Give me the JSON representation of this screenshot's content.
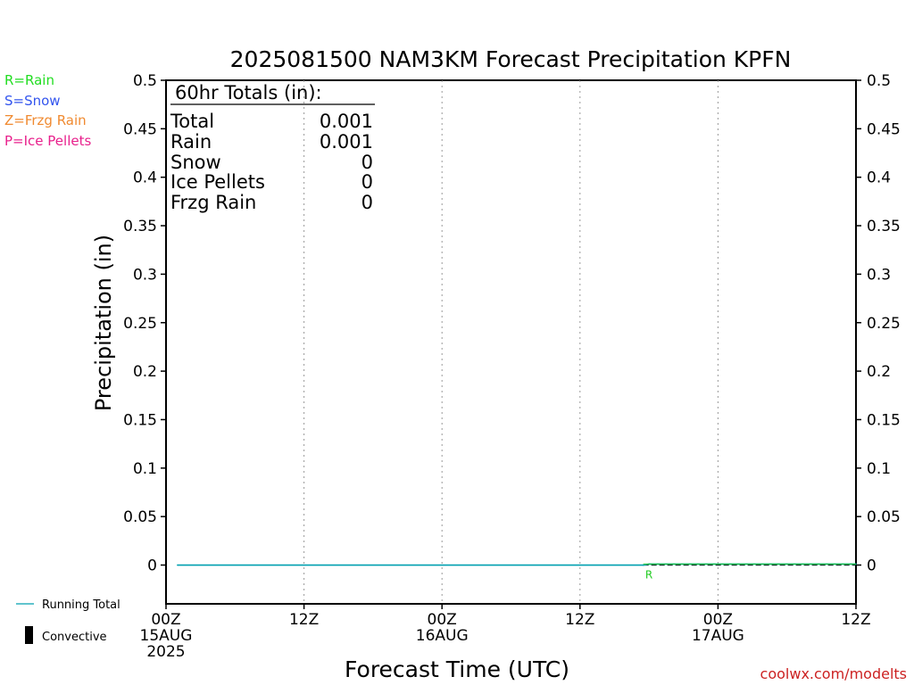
{
  "chart_data": {
    "type": "line",
    "title": "2025081500 NAM3KM Forecast Precipitation KPFN",
    "xlabel": "Forecast Time (UTC)",
    "ylabel": "Precipitation (in)",
    "ylim": [
      -0.04,
      0.5
    ],
    "xlim_hours": [
      0,
      60
    ],
    "yticks": [
      "0.5",
      "0.45",
      "0.4",
      "0.35",
      "0.3",
      "0.25",
      "0.2",
      "0.15",
      "0.1",
      "0.05",
      "0"
    ],
    "xticks": [
      {
        "hour": 0,
        "line1": "00Z",
        "line2": "15AUG",
        "line3": "2025"
      },
      {
        "hour": 12,
        "line1": "12Z",
        "line2": "",
        "line3": ""
      },
      {
        "hour": 24,
        "line1": "00Z",
        "line2": "16AUG",
        "line3": ""
      },
      {
        "hour": 36,
        "line1": "12Z",
        "line2": "",
        "line3": ""
      },
      {
        "hour": 48,
        "line1": "00Z",
        "line2": "17AUG",
        "line3": ""
      },
      {
        "hour": 60,
        "line1": "12Z",
        "line2": "",
        "line3": ""
      }
    ],
    "grid": {
      "vertical": true,
      "horizontal": false
    },
    "series": [
      {
        "name": "Running Total",
        "color": "#00a0b0",
        "x_hours": [
          1,
          41.5,
          42,
          60
        ],
        "values": [
          0,
          0,
          0.001,
          0.001
        ]
      }
    ],
    "precip_markers": [
      {
        "hour": 42,
        "label": "R",
        "color": "#22cc22"
      }
    ],
    "convective_values": []
  },
  "legend": {
    "types": [
      {
        "label": "R=Rain",
        "color": "#22dd22"
      },
      {
        "label": "S=Snow",
        "color": "#3355ee"
      },
      {
        "label": "Z=Frzg Rain",
        "color": "#f08a30"
      },
      {
        "label": "P=Ice Pellets",
        "color": "#e8208c"
      }
    ],
    "running_total_label": "Running Total",
    "convective_label": "Convective"
  },
  "totals": {
    "heading": "60hr Totals (in):",
    "rows": [
      {
        "label": "Total",
        "value": "0.001"
      },
      {
        "label": "Rain",
        "value": "0.001"
      },
      {
        "label": "Snow",
        "value": "0"
      },
      {
        "label": "Ice Pellets",
        "value": "0"
      },
      {
        "label": "Frzg Rain",
        "value": "0"
      }
    ]
  },
  "credit": "coolwx.com/modelts"
}
